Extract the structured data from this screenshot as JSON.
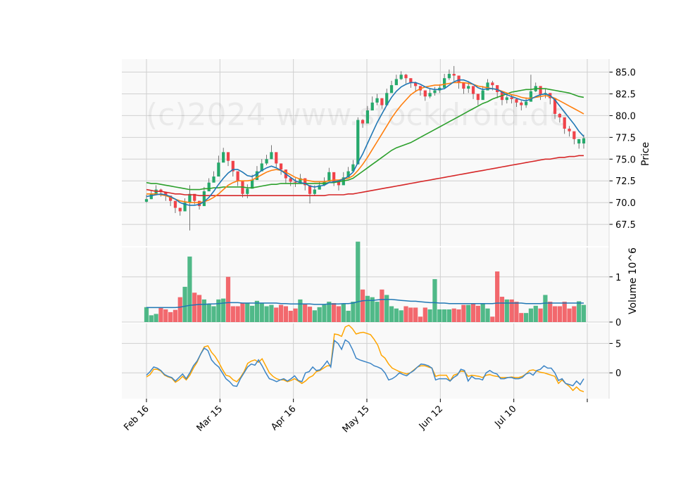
{
  "chart_data": {
    "type": "candlestick",
    "watermark": "(c)2024 www.stockdroid.de",
    "price_panel": {
      "ylabel": "Price",
      "ylim": [
        65.0,
        86.5
      ],
      "yticks": [
        "85.0",
        "82.5",
        "80.0",
        "77.5",
        "75.0",
        "72.5",
        "70.0",
        "67.5"
      ],
      "ytick_values": [
        85.0,
        82.5,
        80.0,
        77.5,
        75.0,
        72.5,
        70.0,
        67.5
      ],
      "candles_close": [
        70.4,
        71.0,
        71.5,
        71.2,
        70.8,
        70.2,
        69.4,
        69.0,
        70.0,
        71.0,
        70.2,
        69.6,
        71.3,
        72.3,
        73.0,
        74.6,
        75.8,
        74.8,
        73.6,
        72.5,
        71.0,
        71.6,
        72.6,
        73.6,
        74.5,
        75.0,
        75.8,
        74.5,
        73.8,
        72.8,
        72.4,
        72.3,
        72.8,
        72.0,
        71.0,
        71.5,
        72.0,
        72.4,
        73.5,
        72.4,
        72.0,
        72.9,
        73.6,
        74.4,
        79.5,
        79.1,
        80.6,
        81.5,
        82.0,
        81.2,
        82.6,
        83.5,
        84.2,
        84.7,
        84.3,
        83.8,
        83.4,
        82.9,
        82.2,
        82.6,
        82.9,
        83.2,
        84.3,
        84.8,
        84.6,
        83.8,
        83.1,
        83.4,
        82.5,
        81.8,
        82.9,
        83.8,
        83.5,
        82.7,
        81.8,
        82.1,
        81.9,
        81.5,
        81.2,
        81.6,
        82.8,
        83.4,
        82.4,
        82.6,
        82.0,
        80.2,
        79.8,
        78.5,
        78.2,
        77.3,
        76.8,
        77.4
      ],
      "candle_direction": [
        "up",
        "up",
        "up",
        "down",
        "down",
        "down",
        "down",
        "down",
        "up",
        "up",
        "down",
        "down",
        "up",
        "up",
        "up",
        "up",
        "up",
        "down",
        "down",
        "down",
        "down",
        "up",
        "up",
        "up",
        "up",
        "up",
        "up",
        "down",
        "down",
        "down",
        "down",
        "down",
        "up",
        "down",
        "down",
        "up",
        "up",
        "up",
        "up",
        "down",
        "down",
        "up",
        "up",
        "up",
        "up",
        "down",
        "up",
        "up",
        "up",
        "down",
        "up",
        "up",
        "up",
        "up",
        "down",
        "down",
        "down",
        "down",
        "down",
        "up",
        "up",
        "up",
        "up",
        "up",
        "down",
        "down",
        "down",
        "up",
        "down",
        "down",
        "up",
        "up",
        "down",
        "down",
        "down",
        "up",
        "down",
        "down",
        "down",
        "up",
        "up",
        "up",
        "down",
        "up",
        "down",
        "down",
        "down",
        "down",
        "down",
        "down",
        "up",
        "up"
      ],
      "candle_wick_high": [
        70.9,
        71.4,
        72.0,
        71.6,
        71.2,
        70.6,
        69.8,
        69.4,
        70.5,
        72.0,
        70.8,
        70.2,
        71.8,
        72.8,
        73.6,
        75.4,
        76.3,
        75.3,
        74.1,
        73.0,
        71.6,
        72.1,
        73.2,
        74.2,
        75.0,
        75.5,
        76.6,
        75.2,
        74.3,
        73.4,
        72.9,
        72.8,
        73.3,
        72.5,
        71.6,
        72.0,
        72.4,
        72.9,
        74.0,
        73.0,
        72.5,
        73.5,
        74.1,
        74.9,
        79.8,
        79.6,
        81.1,
        82.2,
        82.5,
        82.0,
        83.1,
        84.0,
        84.7,
        85.1,
        84.8,
        84.3,
        83.9,
        83.4,
        82.7,
        83.1,
        83.3,
        83.6,
        84.8,
        85.3,
        85.7,
        84.3,
        83.6,
        83.9,
        83.0,
        82.3,
        83.4,
        84.2,
        84.0,
        83.2,
        82.3,
        82.5,
        82.4,
        82.0,
        81.7,
        82.1,
        84.7,
        83.8,
        83.0,
        83.1,
        82.4,
        80.8,
        80.3,
        79.0,
        78.8,
        77.9,
        77.3,
        77.8
      ],
      "candle_wick_low": [
        70.0,
        70.4,
        71.0,
        70.7,
        70.2,
        69.6,
        68.8,
        68.5,
        69.3,
        66.8,
        69.8,
        69.2,
        70.6,
        71.8,
        72.4,
        74.0,
        75.0,
        74.2,
        73.0,
        71.9,
        70.6,
        70.5,
        72.0,
        73.0,
        74.0,
        74.3,
        75.0,
        74.0,
        73.2,
        72.2,
        71.9,
        71.8,
        72.2,
        71.4,
        69.9,
        70.8,
        71.5,
        71.9,
        72.6,
        71.9,
        71.4,
        72.3,
        73.0,
        73.8,
        75.2,
        78.6,
        79.8,
        80.7,
        81.2,
        80.8,
        81.8,
        82.8,
        83.6,
        84.1,
        83.7,
        83.2,
        82.7,
        82.3,
        81.7,
        82.0,
        82.3,
        82.6,
        83.6,
        84.1,
        84.0,
        83.1,
        82.5,
        82.6,
        81.9,
        81.2,
        82.1,
        83.0,
        82.9,
        82.0,
        81.2,
        81.4,
        81.4,
        81.0,
        80.6,
        80.9,
        82.0,
        82.7,
        81.8,
        82.0,
        81.3,
        79.6,
        79.2,
        77.9,
        77.6,
        76.7,
        76.2,
        76.2
      ],
      "sma_short_blue": [
        70.7,
        70.8,
        70.9,
        71.0,
        70.9,
        70.7,
        70.4,
        70.0,
        69.8,
        69.7,
        69.7,
        69.8,
        70.1,
        70.6,
        71.3,
        72.1,
        72.8,
        73.4,
        73.8,
        73.8,
        73.5,
        73.1,
        73.0,
        73.3,
        73.7,
        74.0,
        74.2,
        74.0,
        73.7,
        73.3,
        72.9,
        72.5,
        72.3,
        72.2,
        71.9,
        71.8,
        71.9,
        72.0,
        72.3,
        72.4,
        72.5,
        72.7,
        73.0,
        73.5,
        74.6,
        75.6,
        76.8,
        78.0,
        79.2,
        80.2,
        81.2,
        82.1,
        82.8,
        83.3,
        83.6,
        83.8,
        83.8,
        83.6,
        83.3,
        83.1,
        83.0,
        83.0,
        83.1,
        83.5,
        83.9,
        84.1,
        84.1,
        83.9,
        83.6,
        83.2,
        83.0,
        83.1,
        83.1,
        83.0,
        82.7,
        82.4,
        82.2,
        82.0,
        81.8,
        81.7,
        81.9,
        82.2,
        82.4,
        82.5,
        82.3,
        81.8,
        81.1,
        80.4,
        79.7,
        79.0,
        78.2,
        77.6
      ],
      "sma_mid_orange": [
        71.0,
        71.0,
        71.0,
        70.9,
        70.8,
        70.6,
        70.4,
        70.2,
        70.1,
        70.0,
        70.0,
        70.0,
        70.1,
        70.3,
        70.6,
        71.0,
        71.5,
        72.0,
        72.3,
        72.5,
        72.5,
        72.5,
        72.6,
        72.9,
        73.2,
        73.5,
        73.7,
        73.8,
        73.7,
        73.5,
        73.2,
        72.9,
        72.7,
        72.6,
        72.5,
        72.4,
        72.4,
        72.4,
        72.5,
        72.6,
        72.6,
        72.7,
        72.8,
        73.1,
        73.7,
        74.4,
        75.2,
        76.1,
        77.0,
        77.9,
        78.8,
        79.7,
        80.5,
        81.2,
        81.8,
        82.4,
        82.8,
        83.1,
        83.3,
        83.4,
        83.5,
        83.5,
        83.6,
        83.7,
        83.8,
        83.8,
        83.8,
        83.7,
        83.6,
        83.4,
        83.3,
        83.2,
        83.1,
        83.0,
        82.8,
        82.6,
        82.4,
        82.3,
        82.1,
        82.0,
        82.0,
        82.1,
        82.2,
        82.3,
        82.2,
        82.0,
        81.7,
        81.4,
        81.1,
        80.8,
        80.5,
        80.2
      ],
      "sma_long_green": [
        72.3,
        72.2,
        72.2,
        72.1,
        72.0,
        71.9,
        71.8,
        71.7,
        71.6,
        71.5,
        71.5,
        71.5,
        71.6,
        71.6,
        71.7,
        71.7,
        71.8,
        71.8,
        71.8,
        71.8,
        71.8,
        71.7,
        71.7,
        71.8,
        71.9,
        72.0,
        72.1,
        72.1,
        72.2,
        72.2,
        72.2,
        72.2,
        72.2,
        72.2,
        72.2,
        72.2,
        72.2,
        72.2,
        72.3,
        72.3,
        72.4,
        72.5,
        72.6,
        72.8,
        73.2,
        73.6,
        74.0,
        74.4,
        74.8,
        75.2,
        75.6,
        76.0,
        76.3,
        76.5,
        76.7,
        76.9,
        77.2,
        77.5,
        77.8,
        78.1,
        78.4,
        78.7,
        79.0,
        79.3,
        79.6,
        79.9,
        80.2,
        80.5,
        80.8,
        81.1,
        81.4,
        81.6,
        81.9,
        82.1,
        82.3,
        82.5,
        82.7,
        82.8,
        82.9,
        83.0,
        83.0,
        83.1,
        83.1,
        83.1,
        83.0,
        82.9,
        82.8,
        82.7,
        82.6,
        82.4,
        82.2,
        82.1
      ],
      "sma_200_red": [
        71.5,
        71.4,
        71.3,
        71.3,
        71.2,
        71.1,
        71.0,
        71.0,
        70.9,
        70.9,
        70.9,
        70.8,
        70.8,
        70.8,
        70.8,
        70.8,
        70.8,
        70.8,
        70.8,
        70.8,
        70.8,
        70.8,
        70.8,
        70.8,
        70.8,
        70.8,
        70.8,
        70.8,
        70.8,
        70.8,
        70.8,
        70.8,
        70.8,
        70.8,
        70.8,
        70.8,
        70.8,
        70.8,
        70.9,
        70.9,
        70.9,
        70.9,
        71.0,
        71.0,
        71.1,
        71.2,
        71.3,
        71.4,
        71.5,
        71.6,
        71.7,
        71.8,
        71.9,
        72.0,
        72.1,
        72.2,
        72.3,
        72.4,
        72.5,
        72.6,
        72.7,
        72.8,
        72.9,
        73.0,
        73.1,
        73.2,
        73.3,
        73.4,
        73.5,
        73.6,
        73.7,
        73.8,
        73.9,
        74.0,
        74.1,
        74.2,
        74.3,
        74.4,
        74.5,
        74.6,
        74.7,
        74.8,
        74.9,
        75.0,
        75.0,
        75.1,
        75.2,
        75.2,
        75.3,
        75.3,
        75.4,
        75.4
      ]
    },
    "volume_panel": {
      "ylabel": "Volume  10^6",
      "ylim": [
        0,
        1.65
      ],
      "yticks": [
        "0",
        "1"
      ],
      "ytick_values": [
        0,
        1
      ],
      "volumes": [
        0.33,
        0.15,
        0.18,
        0.32,
        0.28,
        0.22,
        0.27,
        0.55,
        0.78,
        1.45,
        0.65,
        0.6,
        0.5,
        0.4,
        0.35,
        0.5,
        0.52,
        1.0,
        0.35,
        0.35,
        0.42,
        0.42,
        0.36,
        0.47,
        0.42,
        0.35,
        0.38,
        0.32,
        0.38,
        0.35,
        0.25,
        0.3,
        0.5,
        0.4,
        0.34,
        0.26,
        0.33,
        0.38,
        0.45,
        0.42,
        0.35,
        0.4,
        0.25,
        0.45,
        1.78,
        0.72,
        0.58,
        0.55,
        0.45,
        0.72,
        0.6,
        0.35,
        0.3,
        0.26,
        0.35,
        0.32,
        0.32,
        0.12,
        0.32,
        0.28,
        0.95,
        0.28,
        0.28,
        0.28,
        0.3,
        0.28,
        0.38,
        0.38,
        0.42,
        0.36,
        0.4,
        0.3,
        0.12,
        1.12,
        0.56,
        0.5,
        0.5,
        0.45,
        0.2,
        0.2,
        0.3,
        0.36,
        0.3,
        0.6,
        0.45,
        0.35,
        0.35,
        0.45,
        0.3,
        0.35,
        0.46,
        0.38
      ],
      "volume_ma": [
        0.32,
        0.32,
        0.32,
        0.32,
        0.32,
        0.32,
        0.32,
        0.33,
        0.35,
        0.37,
        0.38,
        0.39,
        0.39,
        0.4,
        0.4,
        0.41,
        0.42,
        0.43,
        0.43,
        0.43,
        0.42,
        0.42,
        0.42,
        0.42,
        0.42,
        0.42,
        0.42,
        0.42,
        0.41,
        0.41,
        0.4,
        0.4,
        0.4,
        0.4,
        0.4,
        0.39,
        0.39,
        0.39,
        0.4,
        0.4,
        0.4,
        0.41,
        0.41,
        0.42,
        0.45,
        0.47,
        0.48,
        0.48,
        0.49,
        0.5,
        0.5,
        0.5,
        0.49,
        0.48,
        0.47,
        0.46,
        0.46,
        0.45,
        0.44,
        0.43,
        0.43,
        0.42,
        0.42,
        0.41,
        0.41,
        0.41,
        0.41,
        0.41,
        0.41,
        0.41,
        0.41,
        0.41,
        0.41,
        0.42,
        0.42,
        0.42,
        0.42,
        0.42,
        0.42,
        0.41,
        0.41,
        0.41,
        0.41,
        0.42,
        0.42,
        0.42,
        0.42,
        0.42,
        0.42,
        0.42,
        0.42,
        0.42
      ]
    },
    "indicator_panel": {
      "ylim": [
        -4.4,
        8.4
      ],
      "yticks": [
        "5",
        "0"
      ],
      "ytick_values": [
        5,
        0
      ],
      "line_blue": [
        -0.4,
        0.2,
        1.0,
        0.8,
        0.4,
        -0.3,
        -0.6,
        -0.8,
        -1.4,
        -0.8,
        -0.2,
        -1.0,
        0.0,
        1.2,
        2.0,
        3.2,
        4.2,
        3.8,
        2.2,
        1.5,
        1.0,
        0.0,
        -1.0,
        -1.5,
        -2.2,
        -2.3,
        -1.0,
        0.0,
        1.0,
        1.5,
        1.3,
        2.2,
        1.2,
        0.0,
        -1.0,
        -1.2,
        -1.5,
        -1.2,
        -1.0,
        -1.4,
        -1.0,
        -0.5,
        -1.3,
        -1.5,
        0.0,
        0.2,
        1.0,
        0.4,
        0.5,
        1.2,
        2.0,
        1.0,
        5.5,
        5.0,
        4.0,
        5.6,
        5.2,
        4.0,
        2.5,
        2.2,
        2.0,
        1.8,
        1.6,
        1.2,
        1.0,
        0.7,
        0.0,
        -1.2,
        -1.0,
        -0.6,
        0.0,
        -0.3,
        -0.5,
        0.0,
        0.4,
        1.0,
        1.5,
        1.4,
        1.2,
        0.8,
        -1.2,
        -1.0,
        -1.0,
        -1.0,
        -1.4,
        -0.8,
        -0.4,
        0.6,
        0.4,
        -1.4,
        -0.6,
        -1.0,
        -1.0,
        -1.2,
        0.0,
        0.4,
        0.0,
        -0.2,
        -1.0,
        -1.0,
        -0.8,
        -0.8,
        -1.0,
        -1.0,
        -0.8,
        -0.2,
        0.0,
        -0.4,
        0.4,
        0.6,
        1.2,
        0.8,
        0.8,
        0.0,
        -1.3,
        -1.0,
        -1.8,
        -2.0,
        -2.2,
        -1.4,
        -2.0,
        -1.0
      ],
      "line_orange": [
        -0.7,
        -0.3,
        0.6,
        0.6,
        0.3,
        -0.4,
        -0.7,
        -0.9,
        -1.6,
        -1.2,
        -0.6,
        -1.2,
        -0.4,
        0.8,
        1.8,
        3.2,
        4.4,
        4.6,
        3.5,
        2.8,
        1.8,
        0.6,
        -0.4,
        -0.6,
        -1.2,
        -1.5,
        -0.8,
        0.2,
        1.6,
        2.0,
        2.2,
        1.8,
        2.4,
        1.2,
        0.0,
        -0.6,
        -1.0,
        -1.2,
        -1.2,
        -1.5,
        -1.3,
        -1.0,
        -1.4,
        -1.8,
        -1.4,
        -0.8,
        -0.5,
        0.2,
        0.4,
        0.8,
        1.2,
        1.2,
        6.6,
        6.5,
        6.2,
        7.8,
        8.1,
        7.5,
        6.6,
        6.8,
        6.9,
        6.7,
        6.5,
        5.7,
        4.7,
        3.0,
        2.5,
        1.5,
        0.8,
        0.5,
        0.2,
        0.0,
        -0.2,
        0.0,
        0.5,
        1.0,
        1.2,
        1.2,
        1.0,
        0.8,
        -0.6,
        -0.4,
        -0.4,
        -0.4,
        -1.4,
        -0.4,
        -0.2,
        0.3,
        0.2,
        -0.6,
        -0.4,
        -0.5,
        -0.6,
        -0.8,
        -0.4,
        -0.3,
        -0.5,
        -0.6,
        -0.8,
        -0.8,
        -0.8,
        -0.7,
        -0.8,
        -0.8,
        -0.6,
        -0.2,
        0.4,
        0.5,
        0.3,
        0.1,
        0.0,
        -0.2,
        -0.4,
        -0.6,
        -1.8,
        -1.2,
        -1.8,
        -2.3,
        -3.0,
        -2.4,
        -3.0,
        -3.2
      ]
    },
    "x_axis": {
      "tick_labels": [
        "Feb 16",
        "Mar 15",
        "Apr 16",
        "May 15",
        "Jun 12",
        "Jul 10",
        ""
      ],
      "tick_index": [
        0,
        20,
        40,
        60,
        80,
        100,
        120
      ]
    },
    "colors": {
      "up": "#26a96c",
      "down": "#f0434a",
      "sma_short": "#1f77b4",
      "sma_mid": "#ff7f0e",
      "sma_long": "#2ca02c",
      "sma_200": "#d62728",
      "vol_ma": "#1f77b4",
      "ind_blue": "#3d85c6",
      "ind_orange": "#ffa500",
      "panel_bg": "#f9f9f9",
      "grid": "#d0d0d0"
    }
  }
}
